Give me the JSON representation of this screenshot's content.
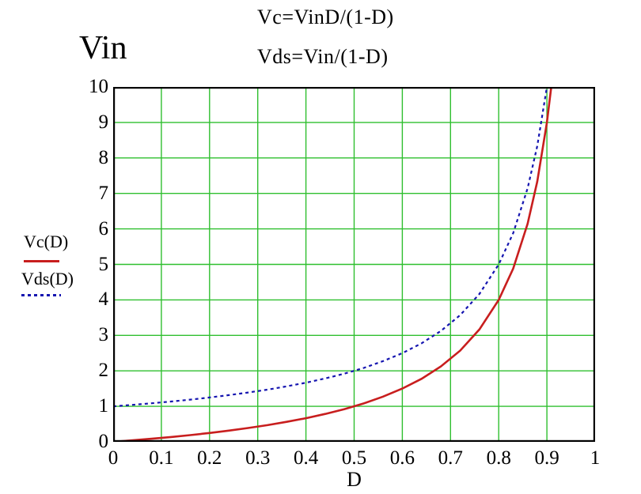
{
  "page": {
    "formula_vc": "Vc=VinD/(1-D)",
    "formula_vds": "Vds=Vin/(1-D)",
    "y_axis_title": "Vin",
    "x_axis_label": "D"
  },
  "legend": {
    "position": "left",
    "items": [
      {
        "label": "Vc(D)",
        "color": "#c81e1e",
        "line_style": "solid"
      },
      {
        "label": "Vds(D)",
        "color": "#1515b0",
        "line_style": "dashed"
      }
    ]
  },
  "chart_data": {
    "type": "line",
    "title": "",
    "xlabel": "D",
    "ylabel": "Vin",
    "xlim": [
      0,
      1
    ],
    "ylim": [
      0,
      10
    ],
    "grid": true,
    "grid_color": "#2fbf2f",
    "axis_color": "#000000",
    "background_color": "#ffffff",
    "x_tick_labels": [
      "0",
      "0.1",
      "0.2",
      "0.3",
      "0.4",
      "0.5",
      "0.6",
      "0.7",
      "0.8",
      "0.9",
      "1"
    ],
    "y_tick_labels": [
      "0",
      "1",
      "2",
      "3",
      "4",
      "5",
      "6",
      "7",
      "8",
      "9",
      "10"
    ],
    "series": [
      {
        "name": "Vc(D)",
        "formula": "Vc=VinD/(1-D)",
        "color": "#c81e1e",
        "style": "solid",
        "points": [
          [
            0,
            0
          ],
          [
            0.04,
            0.042
          ],
          [
            0.08,
            0.087
          ],
          [
            0.12,
            0.136
          ],
          [
            0.16,
            0.19
          ],
          [
            0.2,
            0.25
          ],
          [
            0.24,
            0.316
          ],
          [
            0.28,
            0.389
          ],
          [
            0.32,
            0.471
          ],
          [
            0.36,
            0.563
          ],
          [
            0.4,
            0.667
          ],
          [
            0.44,
            0.786
          ],
          [
            0.48,
            0.923
          ],
          [
            0.52,
            1.083
          ],
          [
            0.56,
            1.273
          ],
          [
            0.6,
            1.5
          ],
          [
            0.64,
            1.778
          ],
          [
            0.68,
            2.125
          ],
          [
            0.72,
            2.571
          ],
          [
            0.76,
            3.167
          ],
          [
            0.8,
            4
          ],
          [
            0.83,
            4.882
          ],
          [
            0.86,
            6.143
          ],
          [
            0.88,
            7.333
          ],
          [
            0.9,
            9
          ],
          [
            0.91,
            10.111
          ],
          [
            0.915,
            10.765
          ]
        ]
      },
      {
        "name": "Vds(D)",
        "formula": "Vds=Vin/(1-D)",
        "color": "#1515b0",
        "style": "dashed",
        "points": [
          [
            0,
            1
          ],
          [
            0.04,
            1.042
          ],
          [
            0.08,
            1.087
          ],
          [
            0.12,
            1.136
          ],
          [
            0.16,
            1.19
          ],
          [
            0.2,
            1.25
          ],
          [
            0.24,
            1.316
          ],
          [
            0.28,
            1.389
          ],
          [
            0.32,
            1.471
          ],
          [
            0.36,
            1.563
          ],
          [
            0.4,
            1.667
          ],
          [
            0.44,
            1.786
          ],
          [
            0.48,
            1.923
          ],
          [
            0.52,
            2.083
          ],
          [
            0.56,
            2.273
          ],
          [
            0.6,
            2.5
          ],
          [
            0.64,
            2.778
          ],
          [
            0.68,
            3.125
          ],
          [
            0.72,
            3.571
          ],
          [
            0.76,
            4.167
          ],
          [
            0.8,
            5
          ],
          [
            0.83,
            5.882
          ],
          [
            0.86,
            7.143
          ],
          [
            0.88,
            8.333
          ],
          [
            0.9,
            10
          ],
          [
            0.905,
            10.526
          ]
        ]
      }
    ]
  }
}
